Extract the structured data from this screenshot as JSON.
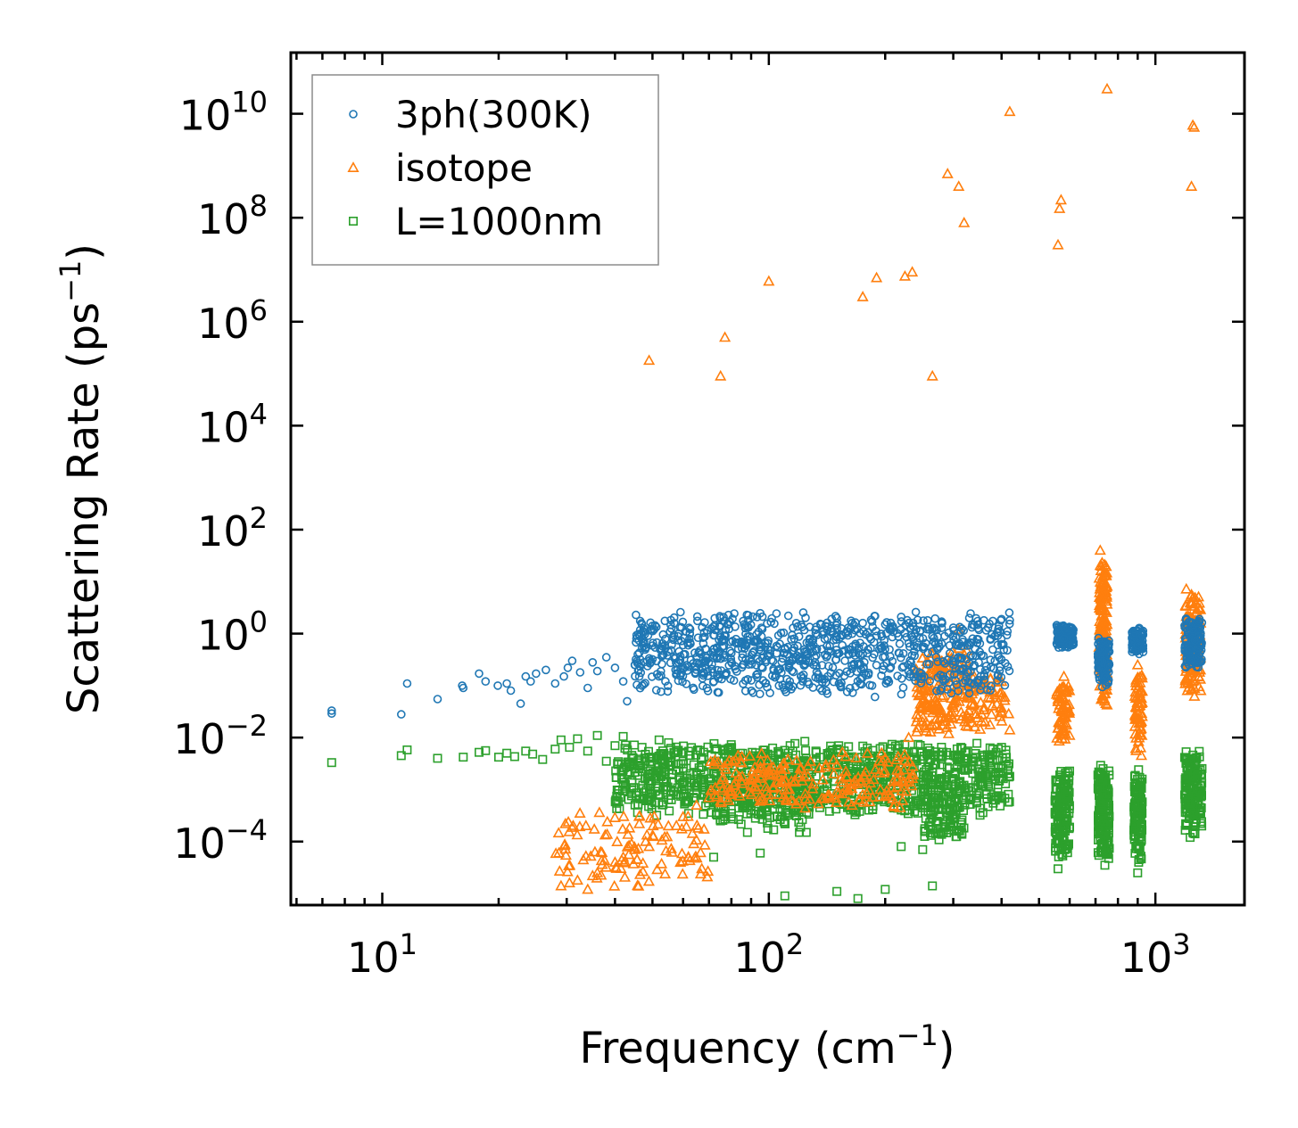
{
  "chart_data": {
    "type": "scatter",
    "title": "",
    "xlabel": "Frequency (cm",
    "xlabel_sup": "−1",
    "xlabel_end": ")",
    "ylabel": "Scattering Rate (ps",
    "ylabel_sup": "−1",
    "ylabel_end": ")",
    "xscale": "log",
    "yscale": "log",
    "xlim": [
      5.8,
      1700
    ],
    "ylim": [
      6e-06,
      150000000000
    ],
    "xticks": [
      {
        "value": 10,
        "base": "10",
        "exp": "1"
      },
      {
        "value": 100,
        "base": "10",
        "exp": "2"
      },
      {
        "value": 1000,
        "base": "10",
        "exp": "3"
      }
    ],
    "yticks": [
      {
        "value": 0.0001,
        "base": "10",
        "exp": "−4"
      },
      {
        "value": 0.01,
        "base": "10",
        "exp": "−2"
      },
      {
        "value": 1,
        "base": "10",
        "exp": "0"
      },
      {
        "value": 100,
        "base": "10",
        "exp": "2"
      },
      {
        "value": 10000,
        "base": "10",
        "exp": "4"
      },
      {
        "value": 1000000,
        "base": "10",
        "exp": "6"
      },
      {
        "value": 100000000,
        "base": "10",
        "exp": "8"
      },
      {
        "value": 10000000000,
        "base": "10",
        "exp": "10"
      }
    ],
    "legend_position": "top-left",
    "series": [
      {
        "name": "3ph(300K)",
        "marker": "circle",
        "color": "#1f77b4",
        "points": [
          [
            7.4,
            0.029
          ],
          [
            7.4,
            0.033
          ],
          [
            11.2,
            0.028
          ],
          [
            11.6,
            0.11
          ],
          [
            13.9,
            0.055
          ],
          [
            16.1,
            0.1
          ],
          [
            16.2,
            0.09
          ],
          [
            17.8,
            0.17
          ],
          [
            18.5,
            0.12
          ],
          [
            19.9,
            0.1
          ],
          [
            21.0,
            0.11
          ],
          [
            21.5,
            0.08
          ],
          [
            22.8,
            0.045
          ],
          [
            23.5,
            0.15
          ],
          [
            24.2,
            0.12
          ],
          [
            25.0,
            0.17
          ],
          [
            26.5,
            0.2
          ],
          [
            28.0,
            0.11
          ],
          [
            29.5,
            0.15
          ],
          [
            30.2,
            0.22
          ],
          [
            31.0,
            0.3
          ],
          [
            32.5,
            0.18
          ],
          [
            34.0,
            0.09
          ],
          [
            35.0,
            0.28
          ],
          [
            36.0,
            0.19
          ],
          [
            38.0,
            0.35
          ],
          [
            40.0,
            0.22
          ],
          [
            42.0,
            0.12
          ],
          [
            43.0,
            0.05
          ],
          [
            45.0,
            0.25
          ],
          [
            47.0,
            0.1
          ],
          [
            50.0,
            0.32
          ],
          [
            52.0,
            0.15
          ],
          [
            55.0,
            0.45
          ],
          [
            58.0,
            0.2
          ],
          [
            60.0,
            0.6
          ],
          [
            65.0,
            0.35
          ],
          [
            68.0,
            1.05
          ],
          [
            72.0,
            0.5
          ],
          [
            75.0,
            0.85
          ],
          [
            80.0,
            0.42
          ],
          [
            85.0,
            0.7
          ],
          [
            90.0,
            0.3
          ],
          [
            95.0,
            0.55
          ],
          [
            100.0,
            0.38
          ],
          [
            110.0,
            0.5
          ],
          [
            120.0,
            0.35
          ],
          [
            130.0,
            0.75
          ],
          [
            140.0,
            1.4
          ],
          [
            150.0,
            2.0
          ],
          [
            160.0,
            1.1
          ],
          [
            175.0,
            1.6
          ],
          [
            190.0,
            0.9
          ],
          [
            200.0,
            1.5
          ],
          [
            220.0,
            2.1
          ],
          [
            240.0,
            2.6
          ],
          [
            260.0,
            1.2
          ],
          [
            280.0,
            1.7
          ],
          [
            300.0,
            1.3
          ],
          [
            330.0,
            2.0
          ],
          [
            360.0,
            1.8
          ],
          [
            400.0,
            1.9
          ],
          [
            420.0,
            1.8
          ],
          [
            560.0,
            1.2
          ],
          [
            580.0,
            0.8
          ],
          [
            600.0,
            0.6
          ],
          [
            720.0,
            0.3
          ],
          [
            740.0,
            0.15
          ],
          [
            760.0,
            0.45
          ],
          [
            880.0,
            0.9
          ],
          [
            900.0,
            0.6
          ],
          [
            920.0,
            1.1
          ],
          [
            1200.0,
            0.7
          ],
          [
            1240.0,
            0.3
          ],
          [
            1280.0,
            1.6
          ],
          [
            1300.0,
            1.9
          ]
        ],
        "clusters": [
          [
            45,
            420,
            0.06,
            3.0,
            900
          ],
          [
            555,
            615,
            0.5,
            1.6,
            120
          ],
          [
            710,
            760,
            0.08,
            1.0,
            120
          ],
          [
            870,
            930,
            0.4,
            1.3,
            90
          ],
          [
            1190,
            1320,
            0.2,
            2.1,
            140
          ]
        ]
      },
      {
        "name": "isotope",
        "marker": "triangle",
        "color": "#ff7f0e",
        "points": [
          [
            29.0,
            1.4e-05
          ],
          [
            30.5,
            1.6e-05
          ],
          [
            32.0,
            1.8e-05
          ],
          [
            34.0,
            1.2e-05
          ],
          [
            35.0,
            2.2e-05
          ],
          [
            36.0,
            2.5e-05
          ],
          [
            38.0,
            3.2e-05
          ],
          [
            40.0,
            4e-05
          ],
          [
            42.0,
            5e-05
          ],
          [
            45.0,
            7e-05
          ],
          [
            48.0,
            0.0001
          ],
          [
            50.0,
            0.00013
          ],
          [
            55.0,
            0.0002
          ],
          [
            60.0,
            0.0003
          ],
          [
            65.0,
            0.0005
          ],
          [
            70.0,
            0.0007
          ],
          [
            75.0,
            0.0006
          ],
          [
            80.0,
            0.0009
          ],
          [
            90.0,
            0.0012
          ],
          [
            100.0,
            0.0008
          ],
          [
            110.0,
            0.0015
          ],
          [
            120.0,
            0.002
          ],
          [
            150.0,
            0.003
          ],
          [
            180.0,
            0.005
          ],
          [
            200.0,
            0.004
          ],
          [
            230.0,
            0.01
          ],
          [
            250.0,
            0.02
          ],
          [
            270.0,
            0.05
          ],
          [
            290.0,
            0.15
          ],
          [
            300.0,
            0.3
          ],
          [
            310.0,
            1.2
          ],
          [
            320.0,
            0.4
          ],
          [
            340.0,
            0.15
          ],
          [
            370.0,
            0.06
          ],
          [
            400.0,
            0.03
          ],
          [
            420.0,
            0.014
          ],
          [
            560.0,
            0.05
          ],
          [
            570.0,
            0.02
          ],
          [
            580.0,
            0.15
          ],
          [
            600.0,
            0.011
          ],
          [
            720.0,
            40
          ],
          [
            730.0,
            10
          ],
          [
            735.0,
            0.3
          ],
          [
            740.0,
            0.12
          ],
          [
            745.0,
            0.045
          ],
          [
            900.0,
            0.25
          ],
          [
            910.0,
            0.07
          ],
          [
            915.0,
            0.02
          ],
          [
            920.0,
            0.0045
          ],
          [
            1200.0,
            1.2
          ],
          [
            1210.0,
            0.08
          ],
          [
            1220.0,
            0.14
          ],
          [
            1300.0,
            0.18
          ],
          [
            1310.0,
            0.08
          ],
          [
            49.0,
            180000
          ],
          [
            75.0,
            90000
          ],
          [
            77.0,
            500000
          ],
          [
            100.0,
            6000000
          ],
          [
            175.0,
            3000000
          ],
          [
            190.0,
            7000000
          ],
          [
            225.0,
            7500000
          ],
          [
            235.0,
            9000000
          ],
          [
            265.0,
            90000
          ],
          [
            290.0,
            700000000
          ],
          [
            310.0,
            400000000
          ],
          [
            320.0,
            80000000
          ],
          [
            420.0,
            11000000000
          ],
          [
            560.0,
            30000000
          ],
          [
            565.0,
            150000000
          ],
          [
            570.0,
            220000000
          ],
          [
            750.0,
            30000000000
          ],
          [
            1240.0,
            400000000
          ],
          [
            1250.0,
            6000000000
          ],
          [
            1260.0,
            5500000000
          ]
        ],
        "clusters": [
          [
            28,
            70,
            1.2e-05,
            0.0004,
            110
          ],
          [
            70,
            240,
            0.0004,
            0.006,
            220
          ],
          [
            240,
            330,
            0.01,
            0.6,
            180
          ],
          [
            320,
            420,
            0.012,
            0.2,
            70
          ],
          [
            555,
            600,
            0.008,
            0.12,
            70
          ],
          [
            715,
            750,
            0.03,
            35,
            160
          ],
          [
            885,
            925,
            0.005,
            0.2,
            60
          ],
          [
            1195,
            1310,
            0.06,
            8,
            120
          ]
        ]
      },
      {
        "name": "L=1000nm",
        "marker": "square",
        "color": "#2ca02c",
        "points": [
          [
            7.4,
            0.0033
          ],
          [
            11.2,
            0.0045
          ],
          [
            11.6,
            0.0058
          ],
          [
            13.9,
            0.004
          ],
          [
            16.2,
            0.0042
          ],
          [
            17.8,
            0.0052
          ],
          [
            18.5,
            0.0056
          ],
          [
            20.0,
            0.0042
          ],
          [
            21.0,
            0.005
          ],
          [
            22.0,
            0.0043
          ],
          [
            23.5,
            0.0055
          ],
          [
            24.5,
            0.0048
          ],
          [
            26.0,
            0.0038
          ],
          [
            28.0,
            0.006
          ],
          [
            29.0,
            0.009
          ],
          [
            30.5,
            0.0065
          ],
          [
            32.0,
            0.0095
          ],
          [
            34.0,
            0.0055
          ],
          [
            36.0,
            0.011
          ],
          [
            38.0,
            0.0035
          ],
          [
            40.0,
            0.007
          ],
          [
            42.0,
            0.0105
          ],
          [
            45.0,
            0.0025
          ],
          [
            47.0,
            0.0065
          ],
          [
            49.0,
            0.0015
          ],
          [
            52.0,
            0.009
          ],
          [
            55.0,
            0.0045
          ],
          [
            60.0,
            0.0035
          ],
          [
            64.0,
            0.003
          ],
          [
            68.0,
            0.002
          ],
          [
            72.0,
            5e-05
          ],
          [
            75.0,
            0.00025
          ],
          [
            80.0,
            0.0003
          ],
          [
            88.0,
            0.00015
          ],
          [
            95.0,
            6e-05
          ],
          [
            105.0,
            0.0003
          ],
          [
            110.0,
            9e-06
          ],
          [
            120.0,
            0.00015
          ],
          [
            125.0,
            0.00015
          ],
          [
            150.0,
            1.1e-05
          ],
          [
            170.0,
            8e-06
          ],
          [
            200.0,
            1.2e-05
          ],
          [
            220.0,
            8e-05
          ],
          [
            250.0,
            7e-05
          ],
          [
            265.0,
            1.4e-05
          ],
          [
            300.0,
            0.0003
          ],
          [
            350.0,
            0.0025
          ],
          [
            400.0,
            0.0065
          ],
          [
            420.0,
            0.0018
          ],
          [
            560.0,
            3e-05
          ],
          [
            570.0,
            7e-05
          ],
          [
            740.0,
            3.5e-05
          ],
          [
            745.0,
            6e-05
          ],
          [
            900.0,
            2.5e-05
          ],
          [
            905.0,
            4e-05
          ],
          [
            1230.0,
            0.00012
          ],
          [
            1250.0,
            0.00015
          ]
        ],
        "clusters": [
          [
            40,
            420,
            0.0003,
            0.009,
            1100
          ],
          [
            70,
            130,
            0.00015,
            0.002,
            120
          ],
          [
            250,
            320,
            0.0001,
            0.001,
            80
          ],
          [
            550,
            600,
            4e-05,
            0.0035,
            150
          ],
          [
            710,
            760,
            4e-05,
            0.0035,
            160
          ],
          [
            880,
            925,
            4e-05,
            0.003,
            120
          ],
          [
            1190,
            1320,
            0.00012,
            0.007,
            150
          ]
        ]
      }
    ]
  }
}
